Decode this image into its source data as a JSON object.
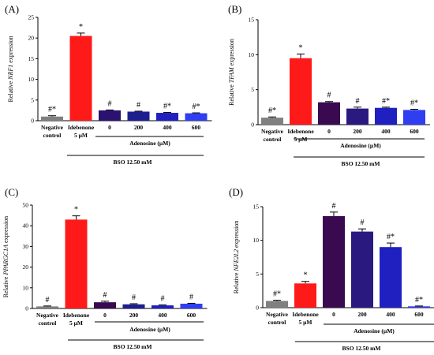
{
  "chart_data": [
    {
      "type": "bar",
      "panel_label": "(A)",
      "ylabel_prefix": "Relative ",
      "ylabel_gene": "NRF1",
      "ylabel_suffix": " expression",
      "ylim": [
        0,
        25
      ],
      "yticks": [
        "0",
        "5",
        "10",
        "15",
        "20",
        "25"
      ],
      "categories": [
        "Negative control",
        "Idebenone 5 µM",
        "0",
        "200",
        "400",
        "600"
      ],
      "category_lines": [
        [
          "Negative",
          "control"
        ],
        [
          "Idebenone",
          "5 µM"
        ],
        [
          "0"
        ],
        [
          "200"
        ],
        [
          "400"
        ],
        [
          "600"
        ]
      ],
      "values": [
        1.0,
        20.5,
        2.5,
        2.2,
        1.9,
        1.8
      ],
      "errors": [
        0.2,
        0.7,
        0.1,
        0.1,
        0.1,
        0.1
      ],
      "annotations": [
        "#*",
        "*",
        "#",
        "#",
        "#*",
        "#*"
      ],
      "colors": [
        "#808080",
        "#ff1a1a",
        "#2b1170",
        "#1e1f8e",
        "#2020c0",
        "#2f3ef0"
      ],
      "group_label": "Adenosine (µM)",
      "treatment_label": "BSO 12.50 mM"
    },
    {
      "type": "bar",
      "panel_label": "(B)",
      "ylabel_prefix": "Relative ",
      "ylabel_gene": "TFAM",
      "ylabel_suffix": " expression",
      "ylim": [
        0,
        15
      ],
      "yticks": [
        "0",
        "5",
        "10",
        "15"
      ],
      "categories": [
        "Negative control",
        "Idebenone 5 µM",
        "0",
        "200",
        "400",
        "600"
      ],
      "category_lines": [
        [
          "Negative",
          "control"
        ],
        [
          "Idebenone",
          "5 µM"
        ],
        [
          "0"
        ],
        [
          "200"
        ],
        [
          "400"
        ],
        [
          "600"
        ]
      ],
      "values": [
        1.0,
        9.5,
        3.2,
        2.3,
        2.4,
        2.1
      ],
      "errors": [
        0.1,
        0.6,
        0.1,
        0.2,
        0.1,
        0.1
      ],
      "annotations": [
        "#*",
        "*",
        "#",
        "#",
        "#*",
        "#*"
      ],
      "colors": [
        "#808080",
        "#ff1a1a",
        "#3a0a50",
        "#2a1a80",
        "#2020c0",
        "#2f3ef0"
      ],
      "group_label": "Adenosine (µM)",
      "treatment_label": "BSO 12.50 mM"
    },
    {
      "type": "bar",
      "panel_label": "(C)",
      "ylabel_prefix": "Relative ",
      "ylabel_gene": "PPARGC1A",
      "ylabel_suffix": " expression",
      "ylim": [
        0,
        50
      ],
      "yticks": [
        "0",
        "10",
        "20",
        "30",
        "40",
        "50"
      ],
      "categories": [
        "Negative control",
        "Idebenone 5 µM",
        "0",
        "200",
        "400",
        "600"
      ],
      "category_lines": [
        [
          "Negative",
          "control"
        ],
        [
          "Idebenone",
          "5 µM"
        ],
        [
          "0"
        ],
        [
          "200"
        ],
        [
          "400"
        ],
        [
          "600"
        ]
      ],
      "values": [
        1.0,
        43.0,
        3.0,
        2.0,
        1.5,
        2.3
      ],
      "errors": [
        0.2,
        1.8,
        0.5,
        0.3,
        0.2,
        0.2
      ],
      "annotations": [
        "#",
        "*",
        "#",
        "#",
        "#",
        "#"
      ],
      "colors": [
        "#808080",
        "#ff1a1a",
        "#3a0a50",
        "#1e1f8e",
        "#2020c0",
        "#2f3ef0"
      ],
      "group_label": "Adenosine (µM)",
      "treatment_label": "BSO 12.50 mM"
    },
    {
      "type": "bar",
      "panel_label": "(D)",
      "ylabel_prefix": "Relative ",
      "ylabel_gene": "NFE2L2",
      "ylabel_suffix": " expression",
      "ylim": [
        0,
        15
      ],
      "yticks": [
        "0",
        "5",
        "10",
        "15"
      ],
      "categories": [
        "Negative control",
        "Idebenone 5 µM",
        "0",
        "200",
        "400",
        "600"
      ],
      "category_lines": [
        [
          "Negative",
          "control"
        ],
        [
          "Idebenone",
          "5 µM"
        ],
        [
          "0"
        ],
        [
          "200"
        ],
        [
          "400"
        ],
        [
          "600"
        ]
      ],
      "values": [
        1.0,
        3.6,
        13.6,
        11.3,
        9.0,
        0.2
      ],
      "errors": [
        0.1,
        0.3,
        0.6,
        0.4,
        0.6,
        0.05
      ],
      "annotations": [
        "#*",
        "*",
        "#",
        "#",
        "#*",
        "#*"
      ],
      "colors": [
        "#808080",
        "#ff1a1a",
        "#3a0a50",
        "#2a1a80",
        "#2020c0",
        "#2f3ef0"
      ],
      "group_label": "Adenosine (µM)",
      "treatment_label": "BSO 12.50 mM"
    }
  ]
}
